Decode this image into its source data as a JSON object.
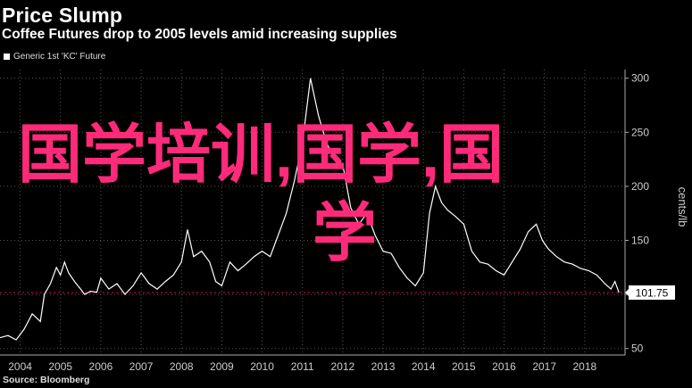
{
  "header": {
    "title": "Price Slump",
    "subtitle": "Coffee Futures drop to 2005 levels amid increasing supplies"
  },
  "legend": {
    "label": "Generic 1st 'KC' Future"
  },
  "source": "Source: Bloomberg",
  "overlay": {
    "line1": "国学培训,国学,国",
    "line2": "学"
  },
  "colors": {
    "background": "#000000",
    "line": "#ffffff",
    "grid": "#555555",
    "reference": "#e0005a",
    "overlay": "#ff2a7a"
  },
  "chart_data": {
    "type": "line",
    "title": "Price Slump",
    "ylabel": "cents/lb",
    "ylim": [
      44,
      308
    ],
    "xlim": [
      2003.5,
      2019.0
    ],
    "yticks": [
      50,
      100,
      150,
      200,
      250,
      300
    ],
    "xticks": [
      2004,
      2005,
      2006,
      2007,
      2008,
      2009,
      2010,
      2011,
      2012,
      2013,
      2014,
      2015,
      2016,
      2017,
      2018
    ],
    "last_value_label": "101.75",
    "reference_value": 101.75,
    "series": [
      {
        "name": "Generic 1st 'KC' Future",
        "x": [
          2003.5,
          2003.7,
          2003.9,
          2004.1,
          2004.3,
          2004.5,
          2004.6,
          2004.75,
          2004.9,
          2005.0,
          2005.1,
          2005.2,
          2005.35,
          2005.5,
          2005.6,
          2005.75,
          2005.9,
          2006.0,
          2006.2,
          2006.4,
          2006.6,
          2006.8,
          2007.0,
          2007.2,
          2007.4,
          2007.6,
          2007.8,
          2008.0,
          2008.15,
          2008.3,
          2008.5,
          2008.7,
          2008.85,
          2009.0,
          2009.2,
          2009.4,
          2009.6,
          2009.8,
          2010.0,
          2010.2,
          2010.4,
          2010.6,
          2010.8,
          2011.0,
          2011.1,
          2011.2,
          2011.4,
          2011.6,
          2011.8,
          2012.0,
          2012.2,
          2012.4,
          2012.6,
          2012.8,
          2013.0,
          2013.2,
          2013.4,
          2013.6,
          2013.8,
          2014.0,
          2014.15,
          2014.3,
          2014.45,
          2014.6,
          2014.8,
          2015.0,
          2015.2,
          2015.4,
          2015.6,
          2015.8,
          2016.0,
          2016.2,
          2016.4,
          2016.6,
          2016.8,
          2016.95,
          2017.1,
          2017.3,
          2017.5,
          2017.7,
          2017.9,
          2018.1,
          2018.3,
          2018.5,
          2018.65,
          2018.75,
          2018.85
        ],
        "values": [
          60,
          62,
          58,
          68,
          82,
          75,
          100,
          110,
          125,
          118,
          130,
          120,
          112,
          105,
          100,
          103,
          102,
          115,
          105,
          110,
          100,
          108,
          120,
          110,
          105,
          112,
          118,
          130,
          160,
          135,
          140,
          130,
          112,
          108,
          130,
          122,
          128,
          135,
          140,
          135,
          155,
          175,
          205,
          240,
          270,
          300,
          265,
          240,
          225,
          220,
          180,
          165,
          175,
          155,
          140,
          138,
          125,
          115,
          108,
          120,
          175,
          200,
          185,
          178,
          172,
          165,
          140,
          130,
          128,
          122,
          118,
          130,
          142,
          158,
          165,
          150,
          142,
          135,
          130,
          128,
          124,
          122,
          118,
          110,
          105,
          112,
          101.75
        ]
      }
    ]
  }
}
